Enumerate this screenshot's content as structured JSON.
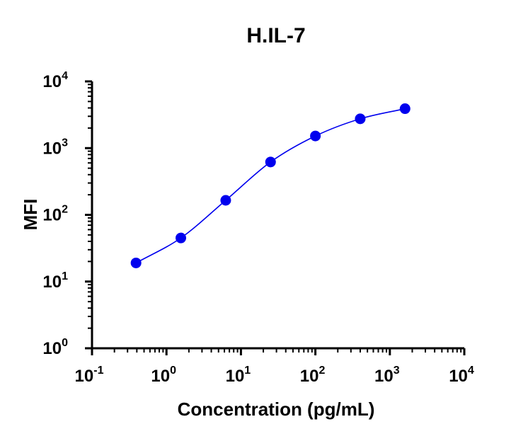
{
  "chart_data": {
    "type": "scatter",
    "title": "H.IL-7",
    "xlabel": "Concentration (pg/mL)",
    "ylabel": "MFI",
    "x_scale": "log10",
    "y_scale": "log10",
    "xlim": [
      0.1,
      10000
    ],
    "ylim": [
      1,
      10000
    ],
    "x_ticks": [
      {
        "base": "10",
        "exp": "-1",
        "value": 0.1
      },
      {
        "base": "10",
        "exp": "0",
        "value": 1
      },
      {
        "base": "10",
        "exp": "1",
        "value": 10
      },
      {
        "base": "10",
        "exp": "2",
        "value": 100
      },
      {
        "base": "10",
        "exp": "3",
        "value": 1000
      },
      {
        "base": "10",
        "exp": "4",
        "value": 10000
      }
    ],
    "y_ticks": [
      {
        "base": "10",
        "exp": "0",
        "value": 1
      },
      {
        "base": "10",
        "exp": "1",
        "value": 10
      },
      {
        "base": "10",
        "exp": "2",
        "value": 100
      },
      {
        "base": "10",
        "exp": "3",
        "value": 1000
      },
      {
        "base": "10",
        "exp": "4",
        "value": 10000
      }
    ],
    "grid": false,
    "legend": "none",
    "series": [
      {
        "x": [
          0.39,
          1.56,
          6.25,
          25,
          100,
          400,
          1600
        ],
        "y": [
          19,
          45,
          165,
          620,
          1520,
          2750,
          3900
        ],
        "marker": "circle",
        "fit": "4PL",
        "color": "#0000ee"
      }
    ]
  }
}
